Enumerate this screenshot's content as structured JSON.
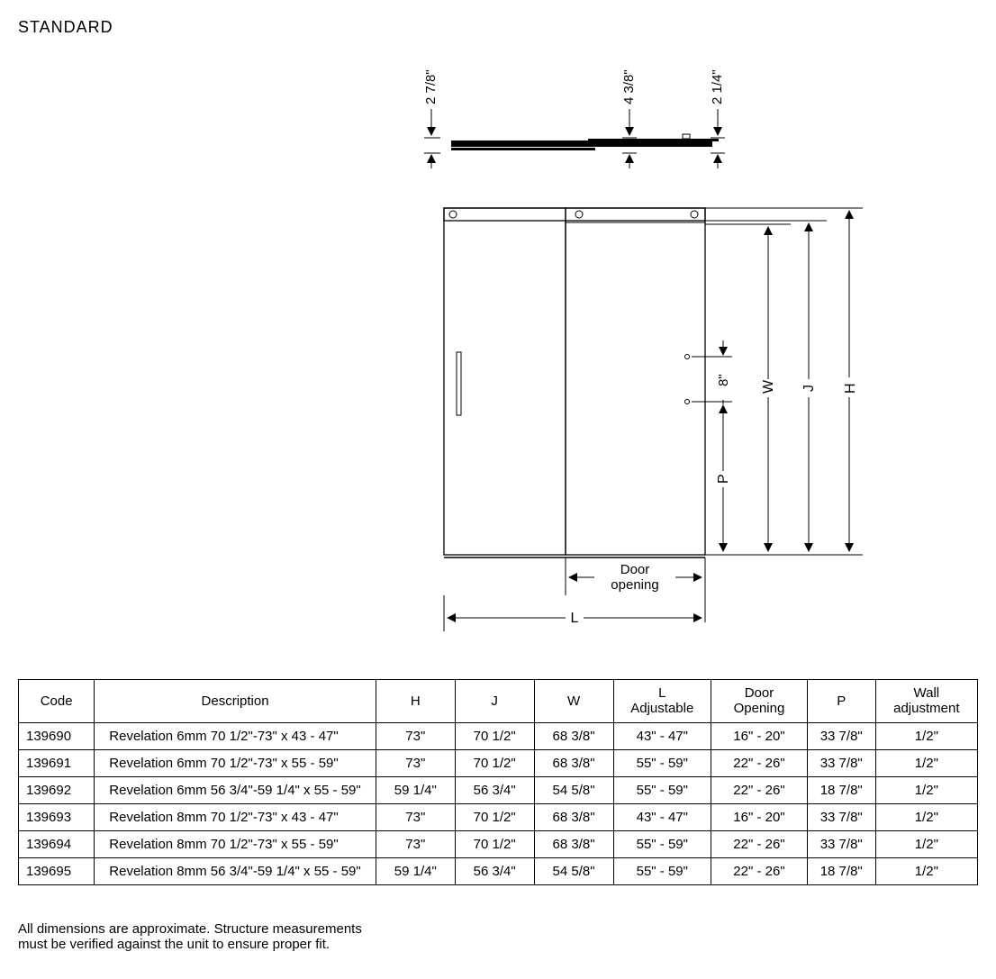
{
  "title": "STANDARD",
  "top_view": {
    "dim_a": "2 7/8\"",
    "dim_b": "4 3/8\"",
    "dim_c": "2 1/4\""
  },
  "front_view": {
    "door_opening_label_1": "Door",
    "door_opening_label_2": "opening",
    "dim_L": "L",
    "dim_H": "H",
    "dim_J": "J",
    "dim_W": "W",
    "dim_P": "P",
    "dim_8": "8\""
  },
  "table": {
    "columns": [
      {
        "key": "code",
        "label": "Code"
      },
      {
        "key": "desc",
        "label": "Description"
      },
      {
        "key": "H",
        "label": "H"
      },
      {
        "key": "J",
        "label": "J"
      },
      {
        "key": "W",
        "label": "W"
      },
      {
        "key": "L",
        "label_top": "L",
        "label_bot": "Adjustable"
      },
      {
        "key": "door",
        "label_top": "Door",
        "label_bot": "Opening"
      },
      {
        "key": "P",
        "label": "P"
      },
      {
        "key": "wall",
        "label_top": "Wall",
        "label_bot": "adjustment"
      }
    ],
    "rows": [
      {
        "code": "139690",
        "desc": "Revelation 6mm 70 1/2\"-73\" x 43 - 47\"",
        "H": "73\"",
        "J": "70 1/2\"",
        "W": "68 3/8\"",
        "L": "43\" - 47\"",
        "door": "16\" - 20\"",
        "P": "33 7/8\"",
        "wall": "1/2\""
      },
      {
        "code": "139691",
        "desc": "Revelation 6mm 70 1/2\"-73\" x 55 - 59\"",
        "H": "73\"",
        "J": "70 1/2\"",
        "W": "68 3/8\"",
        "L": "55\" - 59\"",
        "door": "22\" - 26\"",
        "P": "33 7/8\"",
        "wall": "1/2\""
      },
      {
        "code": "139692",
        "desc": "Revelation 6mm 56 3/4\"-59 1/4\" x 55 - 59\"",
        "H": "59 1/4\"",
        "J": "56 3/4\"",
        "W": "54 5/8\"",
        "L": "55\" - 59\"",
        "door": "22\" - 26\"",
        "P": "18 7/8\"",
        "wall": "1/2\""
      },
      {
        "code": "139693",
        "desc": "Revelation 8mm 70 1/2\"-73\" x 43 - 47\"",
        "H": "73\"",
        "J": "70 1/2\"",
        "W": "68 3/8\"",
        "L": "43\" - 47\"",
        "door": "16\" - 20\"",
        "P": "33 7/8\"",
        "wall": "1/2\""
      },
      {
        "code": "139694",
        "desc": "Revelation 8mm 70 1/2\"-73\" x 55 - 59\"",
        "H": "73\"",
        "J": "70 1/2\"",
        "W": "68 3/8\"",
        "L": "55\" - 59\"",
        "door": "22\" - 26\"",
        "P": "33 7/8\"",
        "wall": "1/2\""
      },
      {
        "code": "139695",
        "desc": "Revelation 8mm 56 3/4\"-59 1/4\" x 55 - 59\"",
        "H": "59 1/4\"",
        "J": "56 3/4\"",
        "W": "54 5/8\"",
        "L": "55\" - 59\"",
        "door": "22\" - 26\"",
        "P": "18 7/8\"",
        "wall": "1/2\""
      }
    ]
  },
  "footnote_1": "All dimensions are approximate. Structure measurements",
  "footnote_2": "must be verified against the unit to ensure proper fit.",
  "style": {
    "stroke": "#000000",
    "stroke_width": 1.3,
    "fill_none": "none",
    "font_size_dim": 15,
    "font_size_label": 15
  }
}
